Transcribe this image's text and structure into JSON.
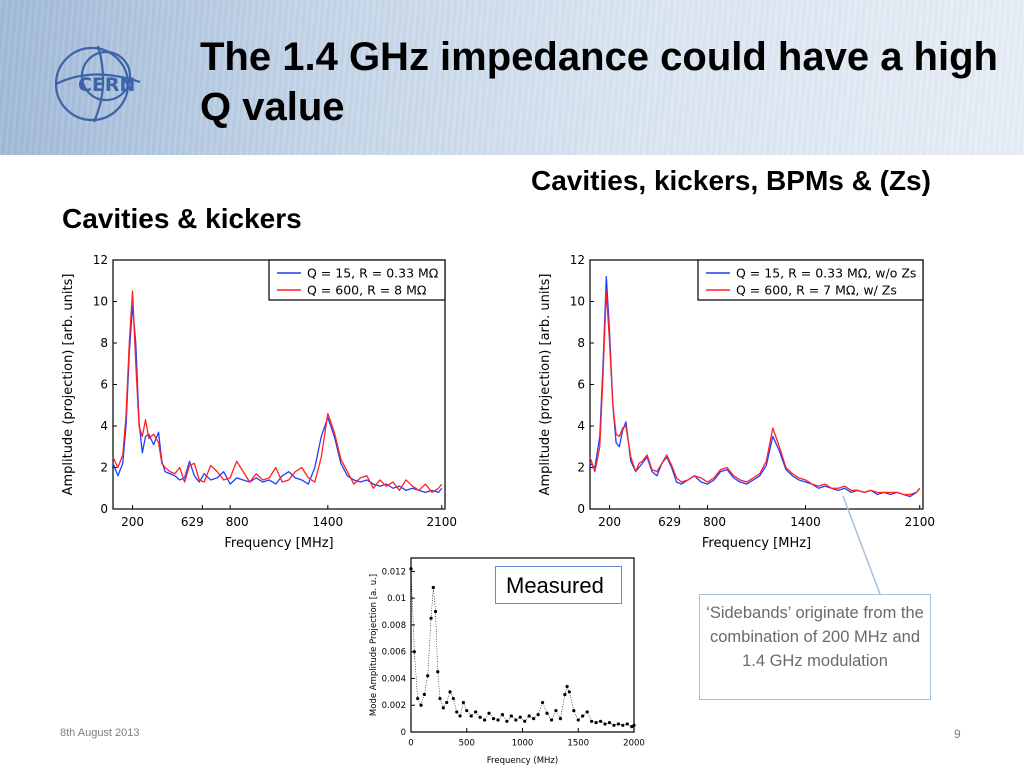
{
  "slide": {
    "title": "The 1.4 GHz impedance could have a high Q value",
    "logo_text": "CERN",
    "left_heading": "Cavities & kickers",
    "right_heading": "Cavities, kickers, BPMs & (Zs)",
    "measured_label": "Measured",
    "note": "‘Sidebands’ originate from the combination of 200 MHz and 1.4 GHz modulation",
    "footer_date": "8th August 2013",
    "page_number": "9"
  },
  "colors": {
    "blue": "#1f3fff",
    "red": "#ff2020",
    "accent": "#5b8fd6"
  },
  "chart_data": [
    {
      "type": "line",
      "xlabel": "Frequency [MHz]",
      "ylabel": "Amplitude (projection) [arb. units]",
      "xlim": [
        80,
        2120
      ],
      "ylim": [
        0,
        12
      ],
      "xticks": [
        200,
        629,
        800,
        1400,
        2100
      ],
      "yticks": [
        0,
        2,
        4,
        6,
        8,
        10,
        12
      ],
      "legend": "top-right",
      "series": [
        {
          "name": "Q = 15, R = 0.33 MΩ",
          "color": "#1f3fff",
          "x": [
            80,
            110,
            140,
            160,
            180,
            200,
            220,
            240,
            260,
            280,
            300,
            330,
            360,
            380,
            400,
            430,
            460,
            490,
            520,
            550,
            580,
            610,
            640,
            680,
            720,
            760,
            800,
            840,
            880,
            920,
            960,
            1000,
            1040,
            1080,
            1120,
            1160,
            1200,
            1240,
            1280,
            1320,
            1360,
            1400,
            1440,
            1480,
            1520,
            1560,
            1600,
            1640,
            1680,
            1720,
            1760,
            1800,
            1840,
            1880,
            1920,
            1960,
            2000,
            2040,
            2080,
            2100
          ],
          "y": [
            2.2,
            1.6,
            2.2,
            4.0,
            7.5,
            9.8,
            8.0,
            4.2,
            2.7,
            3.5,
            3.6,
            3.1,
            3.7,
            2.3,
            1.8,
            1.7,
            1.6,
            1.4,
            1.5,
            2.3,
            1.6,
            1.3,
            1.7,
            1.4,
            1.5,
            1.8,
            1.2,
            1.5,
            1.4,
            1.3,
            1.5,
            1.3,
            1.4,
            1.2,
            1.6,
            1.8,
            1.5,
            1.4,
            1.2,
            2.0,
            3.5,
            4.4,
            3.5,
            2.2,
            1.6,
            1.4,
            1.3,
            1.4,
            1.2,
            1.1,
            1.2,
            1.0,
            1.1,
            0.9,
            1.0,
            0.9,
            0.8,
            0.9,
            0.8,
            1.0
          ]
        },
        {
          "name": "Q = 600, R = 8 MΩ",
          "color": "#ff2020",
          "x": [
            80,
            110,
            140,
            160,
            180,
            200,
            220,
            240,
            260,
            280,
            300,
            330,
            360,
            380,
            400,
            430,
            460,
            490,
            520,
            550,
            580,
            610,
            640,
            680,
            720,
            760,
            800,
            840,
            880,
            920,
            960,
            1000,
            1040,
            1080,
            1120,
            1160,
            1200,
            1240,
            1280,
            1320,
            1360,
            1400,
            1440,
            1480,
            1520,
            1560,
            1600,
            1640,
            1680,
            1720,
            1760,
            1800,
            1840,
            1880,
            1920,
            1960,
            2000,
            2040,
            2080,
            2100
          ],
          "y": [
            2.5,
            2.0,
            2.6,
            4.5,
            8.0,
            10.5,
            7.0,
            4.0,
            3.5,
            4.3,
            3.4,
            3.6,
            3.2,
            2.2,
            2.0,
            1.8,
            1.7,
            2.0,
            1.3,
            2.1,
            2.2,
            1.4,
            1.3,
            2.1,
            1.8,
            1.4,
            1.5,
            2.3,
            1.8,
            1.3,
            1.7,
            1.4,
            1.5,
            2.0,
            1.3,
            1.4,
            1.8,
            2.0,
            1.5,
            1.3,
            2.5,
            4.6,
            3.7,
            2.4,
            1.8,
            1.2,
            1.5,
            1.6,
            1.0,
            1.4,
            1.1,
            1.3,
            0.9,
            1.4,
            1.1,
            0.9,
            1.2,
            0.8,
            1.0,
            1.2
          ]
        }
      ]
    },
    {
      "type": "line",
      "xlabel": "Frequency [MHz]",
      "ylabel": "Amplitude (projection) [arb. units]",
      "xlim": [
        80,
        2120
      ],
      "ylim": [
        0,
        12
      ],
      "xticks": [
        200,
        629,
        800,
        1400,
        2100
      ],
      "yticks": [
        0,
        2,
        4,
        6,
        8,
        10,
        12
      ],
      "legend": "top-right",
      "series": [
        {
          "name": "Q = 15, R = 0.33 MΩ, w/o Zs",
          "color": "#1f3fff",
          "x": [
            80,
            110,
            140,
            160,
            180,
            200,
            220,
            240,
            260,
            280,
            300,
            330,
            360,
            380,
            400,
            430,
            460,
            490,
            520,
            550,
            580,
            610,
            640,
            680,
            720,
            760,
            800,
            840,
            880,
            920,
            960,
            1000,
            1040,
            1080,
            1120,
            1160,
            1200,
            1240,
            1280,
            1320,
            1360,
            1400,
            1440,
            1480,
            1520,
            1560,
            1600,
            1640,
            1680,
            1720,
            1760,
            1800,
            1840,
            1880,
            1920,
            1960,
            2000,
            2040,
            2080,
            2100
          ],
          "y": [
            2.2,
            2.0,
            3.5,
            7.0,
            11.2,
            8.5,
            5.0,
            3.2,
            3.0,
            3.8,
            4.2,
            2.3,
            1.8,
            2.0,
            2.2,
            2.5,
            1.8,
            1.6,
            2.2,
            2.5,
            2.0,
            1.3,
            1.2,
            1.4,
            1.6,
            1.3,
            1.2,
            1.4,
            1.8,
            1.9,
            1.5,
            1.3,
            1.2,
            1.4,
            1.6,
            2.1,
            3.5,
            2.8,
            1.9,
            1.6,
            1.4,
            1.3,
            1.2,
            1.0,
            1.1,
            1.0,
            0.9,
            1.0,
            0.8,
            0.9,
            0.8,
            0.9,
            0.7,
            0.8,
            0.7,
            0.8,
            0.7,
            0.6,
            0.8,
            1.0
          ]
        },
        {
          "name": "Q = 600, R = 7 MΩ, w/ Zs",
          "color": "#ff2020",
          "x": [
            80,
            110,
            140,
            160,
            180,
            200,
            220,
            240,
            260,
            280,
            300,
            330,
            360,
            380,
            400,
            430,
            460,
            490,
            520,
            550,
            580,
            610,
            640,
            680,
            720,
            760,
            800,
            840,
            880,
            920,
            960,
            1000,
            1040,
            1080,
            1120,
            1160,
            1200,
            1240,
            1280,
            1320,
            1360,
            1400,
            1440,
            1480,
            1520,
            1560,
            1600,
            1640,
            1680,
            1720,
            1760,
            1800,
            1840,
            1880,
            1920,
            1960,
            2000,
            2040,
            2080,
            2100
          ],
          "y": [
            2.5,
            1.8,
            3.0,
            6.5,
            10.5,
            8.0,
            5.0,
            3.6,
            3.5,
            3.9,
            4.0,
            2.5,
            1.8,
            2.2,
            2.3,
            2.6,
            1.9,
            1.8,
            2.2,
            2.6,
            2.1,
            1.5,
            1.3,
            1.4,
            1.6,
            1.5,
            1.3,
            1.5,
            1.9,
            2.0,
            1.6,
            1.4,
            1.3,
            1.5,
            1.7,
            2.3,
            3.9,
            3.0,
            2.0,
            1.7,
            1.5,
            1.4,
            1.2,
            1.1,
            1.2,
            1.0,
            1.0,
            1.1,
            0.9,
            0.9,
            0.8,
            0.9,
            0.8,
            0.8,
            0.8,
            0.8,
            0.7,
            0.7,
            0.8,
            1.0
          ]
        }
      ]
    },
    {
      "type": "scatter",
      "xlabel": "Frequency (MHz)",
      "ylabel": "Mode Amplitude Projection [a. u.]",
      "xlim": [
        0,
        2000
      ],
      "ylim": [
        0,
        0.013
      ],
      "xticks": [
        0,
        500,
        1000,
        1500,
        2000
      ],
      "yticks": [
        0,
        0.002,
        0.004,
        0.006,
        0.008,
        0.01,
        0.012
      ],
      "series": [
        {
          "name": "",
          "color": "#000000",
          "x": [
            0,
            30,
            60,
            90,
            120,
            150,
            180,
            200,
            220,
            240,
            260,
            290,
            320,
            350,
            380,
            410,
            440,
            470,
            500,
            540,
            580,
            620,
            660,
            700,
            740,
            780,
            820,
            860,
            900,
            940,
            980,
            1020,
            1060,
            1100,
            1140,
            1180,
            1220,
            1260,
            1300,
            1340,
            1380,
            1400,
            1420,
            1460,
            1500,
            1540,
            1580,
            1620,
            1660,
            1700,
            1740,
            1780,
            1820,
            1860,
            1900,
            1940,
            1980,
            2000
          ],
          "y": [
            0.0122,
            0.006,
            0.0025,
            0.002,
            0.0028,
            0.0042,
            0.0085,
            0.0108,
            0.009,
            0.0045,
            0.0025,
            0.0018,
            0.0022,
            0.003,
            0.0025,
            0.0015,
            0.0012,
            0.0022,
            0.0016,
            0.0012,
            0.0015,
            0.0011,
            0.0009,
            0.0014,
            0.001,
            0.0009,
            0.0013,
            0.0008,
            0.0012,
            0.0009,
            0.0011,
            0.0008,
            0.0012,
            0.001,
            0.0013,
            0.0022,
            0.0014,
            0.0009,
            0.0016,
            0.001,
            0.0028,
            0.0034,
            0.003,
            0.0016,
            0.0009,
            0.0012,
            0.0015,
            0.0008,
            0.0007,
            0.0008,
            0.0006,
            0.0007,
            0.0005,
            0.0006,
            0.0005,
            0.0006,
            0.0004,
            0.0005
          ]
        }
      ]
    }
  ]
}
